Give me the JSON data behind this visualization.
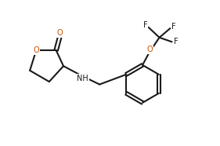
{
  "background_color": "#ffffff",
  "line_color": "#1a1a1a",
  "o_color": "#c85000",
  "n_color": "#1a1a1a",
  "f_color": "#1a1a1a",
  "linewidth": 1.5,
  "fontsize": 7.0,
  "fig_width": 2.81,
  "fig_height": 1.86,
  "dpi": 100,
  "xlim": [
    0,
    9.0
  ],
  "ylim": [
    0,
    6.0
  ]
}
